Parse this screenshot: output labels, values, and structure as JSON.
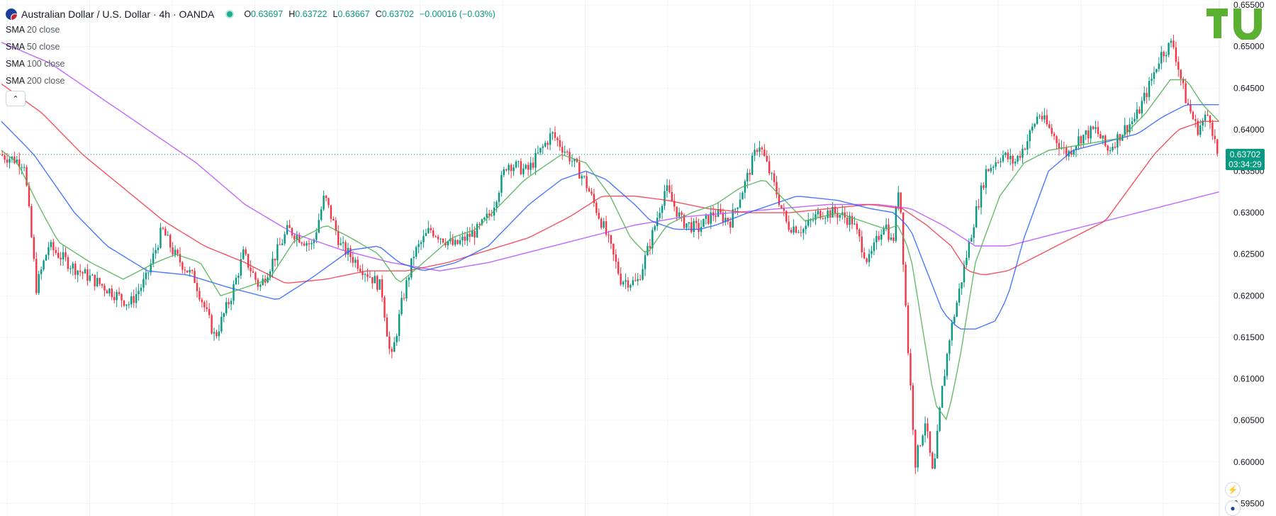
{
  "header": {
    "symbol_title": "Australian Dollar / U.S. Dollar · 4h · OANDA",
    "ohlc": [
      {
        "key": "O",
        "value": "0.63697"
      },
      {
        "key": "H",
        "value": "0.63722"
      },
      {
        "key": "L",
        "value": "0.63667"
      },
      {
        "key": "C",
        "value": "0.63702"
      }
    ],
    "change": "−0.00016 (−0.03%)"
  },
  "indicators": [
    {
      "name": "SMA",
      "params": "20 close",
      "color": "#4caf50"
    },
    {
      "name": "SMA",
      "params": "50 close",
      "color": "#2962ff"
    },
    {
      "name": "SMA",
      "params": "100 close",
      "color": "#f23645"
    },
    {
      "name": "SMA",
      "params": "200 close",
      "color": "#b84dff"
    }
  ],
  "logo": {
    "text": "TU",
    "color": "#5ab031"
  },
  "price_tag": {
    "price": "0.63702",
    "countdown": "03:34:29",
    "color": "#089981"
  },
  "colors": {
    "up": "#089981",
    "down": "#f23645",
    "grid": "#f0f3fa"
  },
  "chart_data": {
    "type": "candlestick",
    "y_axis_ticks": [
      "0.65500",
      "0.65000",
      "0.64500",
      "0.64000",
      "0.63500",
      "0.63000",
      "0.62500",
      "0.62000",
      "0.61500",
      "0.61000",
      "0.60500",
      "0.60000",
      "0.59500"
    ],
    "ylim": [
      0.5935,
      0.6556
    ],
    "last_price": 0.63702,
    "price_path": [
      [
        0,
        0.637
      ],
      [
        30,
        0.636
      ],
      [
        45,
        0.621
      ],
      [
        60,
        0.626
      ],
      [
        90,
        0.6235
      ],
      [
        130,
        0.621
      ],
      [
        160,
        0.619
      ],
      [
        180,
        0.622
      ],
      [
        200,
        0.628
      ],
      [
        215,
        0.625
      ],
      [
        240,
        0.622
      ],
      [
        265,
        0.615
      ],
      [
        285,
        0.62
      ],
      [
        300,
        0.625
      ],
      [
        320,
        0.621
      ],
      [
        340,
        0.625
      ],
      [
        355,
        0.628
      ],
      [
        385,
        0.626
      ],
      [
        400,
        0.632
      ],
      [
        420,
        0.626
      ],
      [
        450,
        0.623
      ],
      [
        470,
        0.621
      ],
      [
        482,
        0.612
      ],
      [
        495,
        0.619
      ],
      [
        510,
        0.625
      ],
      [
        530,
        0.628
      ],
      [
        560,
        0.626
      ],
      [
        590,
        0.628
      ],
      [
        605,
        0.63
      ],
      [
        625,
        0.636
      ],
      [
        650,
        0.635
      ],
      [
        680,
        0.6395
      ],
      [
        700,
        0.637
      ],
      [
        720,
        0.634
      ],
      [
        745,
        0.628
      ],
      [
        765,
        0.622
      ],
      [
        785,
        0.6215
      ],
      [
        800,
        0.626
      ],
      [
        820,
        0.633
      ],
      [
        840,
        0.629
      ],
      [
        860,
        0.628
      ],
      [
        880,
        0.63
      ],
      [
        900,
        0.629
      ],
      [
        920,
        0.634
      ],
      [
        935,
        0.6385
      ],
      [
        955,
        0.633
      ],
      [
        970,
        0.6285
      ],
      [
        990,
        0.628
      ],
      [
        1010,
        0.63
      ],
      [
        1030,
        0.63
      ],
      [
        1050,
        0.629
      ],
      [
        1070,
        0.624
      ],
      [
        1090,
        0.629
      ],
      [
        1100,
        0.626
      ],
      [
        1108,
        0.634
      ],
      [
        1118,
        0.615
      ],
      [
        1128,
        0.6
      ],
      [
        1140,
        0.605
      ],
      [
        1150,
        0.598
      ],
      [
        1160,
        0.608
      ],
      [
        1170,
        0.615
      ],
      [
        1185,
        0.622
      ],
      [
        1200,
        0.629
      ],
      [
        1215,
        0.635
      ],
      [
        1235,
        0.637
      ],
      [
        1250,
        0.636
      ],
      [
        1265,
        0.6385
      ],
      [
        1280,
        0.642
      ],
      [
        1300,
        0.639
      ],
      [
        1315,
        0.637
      ],
      [
        1330,
        0.639
      ],
      [
        1350,
        0.64
      ],
      [
        1365,
        0.6375
      ],
      [
        1385,
        0.64
      ],
      [
        1400,
        0.6415
      ],
      [
        1415,
        0.645
      ],
      [
        1430,
        0.649
      ],
      [
        1445,
        0.6505
      ],
      [
        1460,
        0.644
      ],
      [
        1475,
        0.64
      ],
      [
        1490,
        0.642
      ],
      [
        1500,
        0.637
      ]
    ],
    "sma20": [
      [
        0,
        0.6375
      ],
      [
        20,
        0.636
      ],
      [
        45,
        0.631
      ],
      [
        70,
        0.6265
      ],
      [
        110,
        0.624
      ],
      [
        150,
        0.622
      ],
      [
        190,
        0.624
      ],
      [
        215,
        0.625
      ],
      [
        245,
        0.624
      ],
      [
        270,
        0.62
      ],
      [
        300,
        0.621
      ],
      [
        330,
        0.622
      ],
      [
        360,
        0.6265
      ],
      [
        400,
        0.6285
      ],
      [
        430,
        0.627
      ],
      [
        465,
        0.625
      ],
      [
        490,
        0.6215
      ],
      [
        520,
        0.624
      ],
      [
        555,
        0.627
      ],
      [
        585,
        0.628
      ],
      [
        615,
        0.631
      ],
      [
        645,
        0.634
      ],
      [
        690,
        0.637
      ],
      [
        720,
        0.636
      ],
      [
        750,
        0.632
      ],
      [
        775,
        0.627
      ],
      [
        795,
        0.625
      ],
      [
        820,
        0.6285
      ],
      [
        850,
        0.63
      ],
      [
        880,
        0.631
      ],
      [
        910,
        0.633
      ],
      [
        940,
        0.634
      ],
      [
        960,
        0.632
      ],
      [
        990,
        0.629
      ],
      [
        1030,
        0.63
      ],
      [
        1060,
        0.629
      ],
      [
        1090,
        0.628
      ],
      [
        1105,
        0.6285
      ],
      [
        1120,
        0.625
      ],
      [
        1135,
        0.616
      ],
      [
        1150,
        0.607
      ],
      [
        1165,
        0.605
      ],
      [
        1180,
        0.612
      ],
      [
        1200,
        0.624
      ],
      [
        1230,
        0.632
      ],
      [
        1260,
        0.636
      ],
      [
        1290,
        0.6375
      ],
      [
        1320,
        0.638
      ],
      [
        1350,
        0.6385
      ],
      [
        1380,
        0.639
      ],
      [
        1410,
        0.642
      ],
      [
        1440,
        0.646
      ],
      [
        1460,
        0.646
      ],
      [
        1480,
        0.643
      ],
      [
        1500,
        0.641
      ]
    ],
    "sma50": [
      [
        0,
        0.641
      ],
      [
        40,
        0.637
      ],
      [
        90,
        0.63
      ],
      [
        130,
        0.626
      ],
      [
        180,
        0.623
      ],
      [
        230,
        0.6225
      ],
      [
        280,
        0.621
      ],
      [
        340,
        0.6195
      ],
      [
        380,
        0.622
      ],
      [
        430,
        0.6255
      ],
      [
        465,
        0.626
      ],
      [
        490,
        0.624
      ],
      [
        520,
        0.623
      ],
      [
        560,
        0.624
      ],
      [
        600,
        0.626
      ],
      [
        650,
        0.631
      ],
      [
        690,
        0.634
      ],
      [
        720,
        0.635
      ],
      [
        745,
        0.634
      ],
      [
        780,
        0.631
      ],
      [
        800,
        0.629
      ],
      [
        830,
        0.628
      ],
      [
        860,
        0.628
      ],
      [
        880,
        0.6285
      ],
      [
        920,
        0.63
      ],
      [
        950,
        0.631
      ],
      [
        980,
        0.632
      ],
      [
        1030,
        0.6315
      ],
      [
        1070,
        0.6305
      ],
      [
        1100,
        0.63
      ],
      [
        1120,
        0.628
      ],
      [
        1140,
        0.623
      ],
      [
        1160,
        0.618
      ],
      [
        1180,
        0.616
      ],
      [
        1200,
        0.616
      ],
      [
        1225,
        0.617
      ],
      [
        1240,
        0.62
      ],
      [
        1260,
        0.627
      ],
      [
        1290,
        0.635
      ],
      [
        1320,
        0.6375
      ],
      [
        1360,
        0.6385
      ],
      [
        1400,
        0.6395
      ],
      [
        1430,
        0.6415
      ],
      [
        1460,
        0.643
      ],
      [
        1500,
        0.643
      ]
    ],
    "sma100": [
      [
        0,
        0.6455
      ],
      [
        50,
        0.642
      ],
      [
        100,
        0.637
      ],
      [
        150,
        0.633
      ],
      [
        200,
        0.629
      ],
      [
        250,
        0.626
      ],
      [
        300,
        0.624
      ],
      [
        350,
        0.6215
      ],
      [
        400,
        0.622
      ],
      [
        450,
        0.623
      ],
      [
        500,
        0.623
      ],
      [
        550,
        0.624
      ],
      [
        600,
        0.6255
      ],
      [
        650,
        0.627
      ],
      [
        700,
        0.6295
      ],
      [
        740,
        0.632
      ],
      [
        780,
        0.632
      ],
      [
        820,
        0.6315
      ],
      [
        870,
        0.6305
      ],
      [
        920,
        0.63
      ],
      [
        970,
        0.63
      ],
      [
        1020,
        0.6305
      ],
      [
        1070,
        0.631
      ],
      [
        1110,
        0.6305
      ],
      [
        1140,
        0.6285
      ],
      [
        1170,
        0.626
      ],
      [
        1190,
        0.623
      ],
      [
        1210,
        0.6225
      ],
      [
        1240,
        0.623
      ],
      [
        1280,
        0.625
      ],
      [
        1320,
        0.627
      ],
      [
        1360,
        0.629
      ],
      [
        1390,
        0.633
      ],
      [
        1420,
        0.637
      ],
      [
        1450,
        0.64
      ],
      [
        1480,
        0.641
      ],
      [
        1500,
        0.641
      ]
    ],
    "sma200": [
      [
        0,
        0.6505
      ],
      [
        60,
        0.648
      ],
      [
        120,
        0.644
      ],
      [
        180,
        0.64
      ],
      [
        240,
        0.636
      ],
      [
        300,
        0.631
      ],
      [
        360,
        0.6275
      ],
      [
        420,
        0.6255
      ],
      [
        480,
        0.624
      ],
      [
        540,
        0.623
      ],
      [
        600,
        0.624
      ],
      [
        660,
        0.6255
      ],
      [
        720,
        0.627
      ],
      [
        780,
        0.6285
      ],
      [
        840,
        0.6295
      ],
      [
        900,
        0.63
      ],
      [
        960,
        0.6305
      ],
      [
        1020,
        0.631
      ],
      [
        1080,
        0.631
      ],
      [
        1120,
        0.6305
      ],
      [
        1160,
        0.6285
      ],
      [
        1200,
        0.626
      ],
      [
        1240,
        0.626
      ],
      [
        1280,
        0.627
      ],
      [
        1320,
        0.628
      ],
      [
        1360,
        0.629
      ],
      [
        1400,
        0.63
      ],
      [
        1440,
        0.631
      ],
      [
        1480,
        0.632
      ],
      [
        1500,
        0.6325
      ]
    ]
  },
  "bottom_icons": [
    "lightning-icon",
    "flag-icon"
  ]
}
